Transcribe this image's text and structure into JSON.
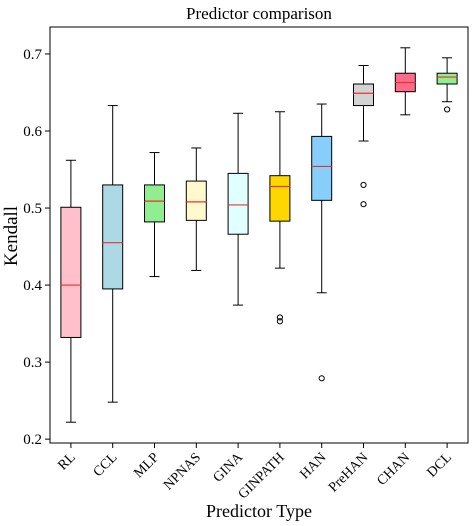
{
  "chart_data": {
    "type": "box",
    "title": "Predictor comparison",
    "xlabel": "Predictor Type",
    "ylabel": "Kendall",
    "ylim": [
      0.195,
      0.735
    ],
    "yticks": [
      0.2,
      0.3,
      0.4,
      0.5,
      0.6,
      0.7
    ],
    "ytick_labels": [
      "0.2",
      "0.3",
      "0.4",
      "0.5",
      "0.6",
      "0.7"
    ],
    "grid": false,
    "median_color": "#e8342c",
    "series": [
      {
        "name": "RL",
        "color": "#ffc0cb",
        "whisker_low": 0.222,
        "q1": 0.332,
        "median": 0.4,
        "q3": 0.501,
        "whisker_high": 0.562,
        "outliers": []
      },
      {
        "name": "CCL",
        "color": "#add8e6",
        "whisker_low": 0.248,
        "q1": 0.395,
        "median": 0.455,
        "q3": 0.53,
        "whisker_high": 0.633,
        "outliers": []
      },
      {
        "name": "MLP",
        "color": "#90ee90",
        "whisker_low": 0.411,
        "q1": 0.482,
        "median": 0.509,
        "q3": 0.53,
        "whisker_high": 0.572,
        "outliers": []
      },
      {
        "name": "NPNAS",
        "color": "#fffacd",
        "whisker_low": 0.419,
        "q1": 0.484,
        "median": 0.508,
        "q3": 0.535,
        "whisker_high": 0.578,
        "outliers": []
      },
      {
        "name": "GINA",
        "color": "#e0ffff",
        "whisker_low": 0.374,
        "q1": 0.466,
        "median": 0.504,
        "q3": 0.545,
        "whisker_high": 0.623,
        "outliers": []
      },
      {
        "name": "GINPATH",
        "color": "#ffd700",
        "whisker_low": 0.422,
        "q1": 0.483,
        "median": 0.528,
        "q3": 0.542,
        "whisker_high": 0.625,
        "outliers": [
          0.358,
          0.353
        ]
      },
      {
        "name": "HAN",
        "color": "#87cefa",
        "whisker_low": 0.39,
        "q1": 0.51,
        "median": 0.554,
        "q3": 0.593,
        "whisker_high": 0.635,
        "outliers": [
          0.279
        ]
      },
      {
        "name": "PreHAN",
        "color": "#d3d3d3",
        "whisker_low": 0.587,
        "q1": 0.633,
        "median": 0.649,
        "q3": 0.661,
        "whisker_high": 0.685,
        "outliers": [
          0.53,
          0.505
        ]
      },
      {
        "name": "CHAN",
        "color": "#ff6b88",
        "whisker_low": 0.621,
        "q1": 0.651,
        "median": 0.663,
        "q3": 0.675,
        "whisker_high": 0.708,
        "outliers": []
      },
      {
        "name": "DCL",
        "color": "#90ee90",
        "whisker_low": 0.638,
        "q1": 0.661,
        "median": 0.67,
        "q3": 0.675,
        "whisker_high": 0.695,
        "outliers": [
          0.628
        ]
      }
    ]
  }
}
